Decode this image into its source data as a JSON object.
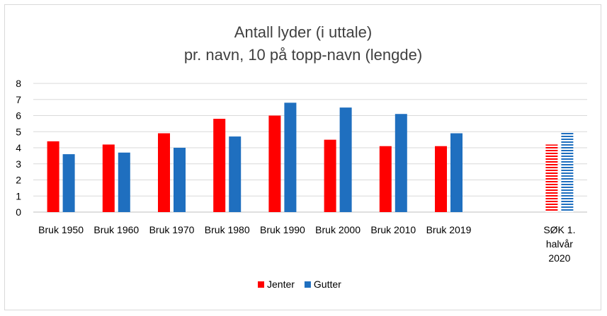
{
  "chart_data": {
    "type": "bar",
    "title_lines": [
      "Antall lyder (i uttale)",
      "pr. navn, 10 på topp-navn (lengde)"
    ],
    "categories": [
      "Bruk 1950",
      "Bruk 1960",
      "Bruk 1970",
      "Bruk 1980",
      "Bruk 1990",
      "Bruk 2000",
      "Bruk 2010",
      "Bruk 2019",
      "",
      "SØK 1. halvår 2020"
    ],
    "category_label_lines": [
      [
        "Bruk 1950"
      ],
      [
        "Bruk 1960"
      ],
      [
        "Bruk 1970"
      ],
      [
        "Bruk 1980"
      ],
      [
        "Bruk 1990"
      ],
      [
        "Bruk 2000"
      ],
      [
        "Bruk 2010"
      ],
      [
        "Bruk 2019"
      ],
      [],
      [
        "SØK 1.",
        "halvår",
        "2020"
      ]
    ],
    "series": [
      {
        "name": "Jenter",
        "color": "#ff0000",
        "values": [
          4.4,
          4.2,
          4.9,
          5.8,
          6.0,
          4.5,
          4.1,
          4.1,
          null,
          4.2
        ]
      },
      {
        "name": "Gutter",
        "color": "#1f6fbf",
        "values": [
          3.6,
          3.7,
          4.0,
          4.7,
          6.8,
          6.5,
          6.1,
          4.9,
          null,
          4.95
        ]
      }
    ],
    "hatched_categories": [
      "SØK 1. halvår 2020"
    ],
    "ylim": [
      0,
      8
    ],
    "yticks": [
      "0",
      "1",
      "2",
      "3",
      "4",
      "5",
      "6",
      "7",
      "8"
    ],
    "grid": true,
    "legend_position": "bottom"
  }
}
